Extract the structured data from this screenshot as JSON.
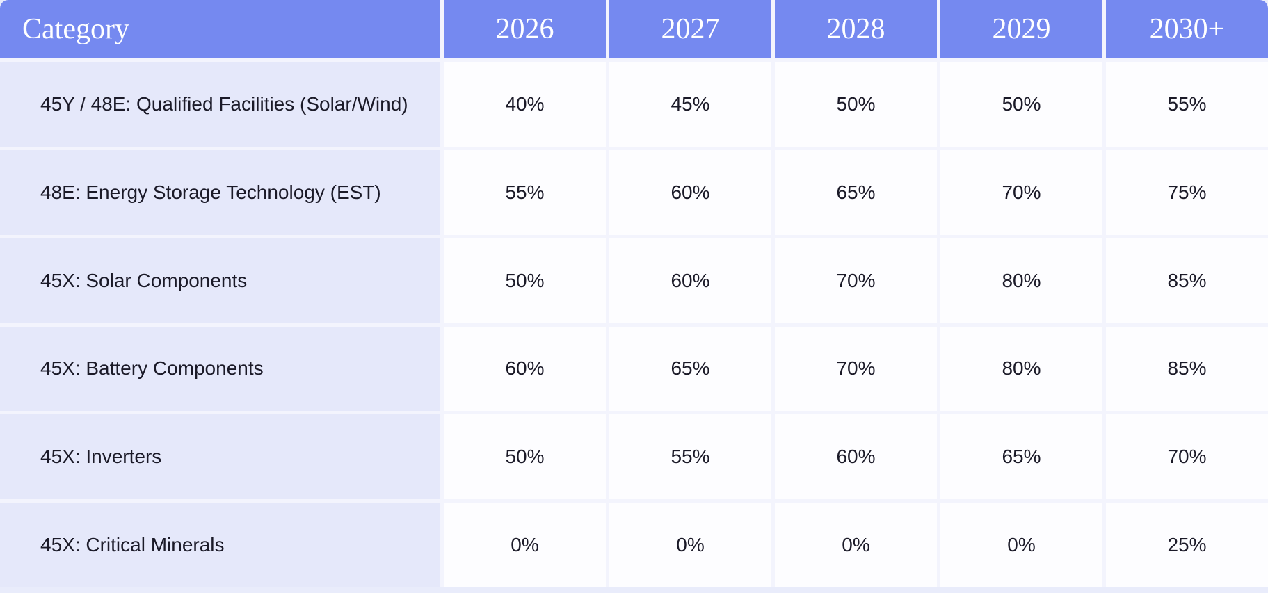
{
  "colors": {
    "header_bg": "#7589f0",
    "header_text": "#ffffff",
    "category_cell_bg": "#e5e8fa",
    "value_cell_bg": "#fdfdff",
    "gap": "#f3f4fd",
    "body_text": "#1b1a28",
    "page_bg": "#e9ecfb"
  },
  "table": {
    "columns": [
      "Category",
      "2026",
      "2027",
      "2028",
      "2029",
      "2030+"
    ],
    "rows": [
      {
        "category": "45Y / 48E: Qualified Facilities (Solar/Wind)",
        "values": [
          "40%",
          "45%",
          "50%",
          "50%",
          "55%"
        ]
      },
      {
        "category": "48E: Energy Storage Technology (EST)",
        "values": [
          "55%",
          "60%",
          "65%",
          "70%",
          "75%"
        ]
      },
      {
        "category": "45X: Solar Components",
        "values": [
          "50%",
          "60%",
          "70%",
          "80%",
          "85%"
        ]
      },
      {
        "category": "45X: Battery Components",
        "values": [
          "60%",
          "65%",
          "70%",
          "80%",
          "85%"
        ]
      },
      {
        "category": "45X: Inverters",
        "values": [
          "50%",
          "55%",
          "60%",
          "65%",
          "70%"
        ]
      },
      {
        "category": "45X: Critical Minerals",
        "values": [
          "0%",
          "0%",
          "0%",
          "0%",
          "25%"
        ]
      }
    ]
  },
  "chart_data": {
    "type": "table",
    "title": "",
    "columns": [
      "Category",
      "2026",
      "2027",
      "2028",
      "2029",
      "2030+"
    ],
    "rows": [
      {
        "label": "45Y / 48E: Qualified Facilities (Solar/Wind)",
        "values_pct": [
          40,
          45,
          50,
          50,
          55
        ]
      },
      {
        "label": "48E: Energy Storage Technology (EST)",
        "values_pct": [
          55,
          60,
          65,
          70,
          75
        ]
      },
      {
        "label": "45X: Solar Components",
        "values_pct": [
          50,
          60,
          70,
          80,
          85
        ]
      },
      {
        "label": "45X: Battery Components",
        "values_pct": [
          60,
          65,
          70,
          80,
          85
        ]
      },
      {
        "label": "45X: Inverters",
        "values_pct": [
          50,
          55,
          60,
          65,
          70
        ]
      },
      {
        "label": "45X: Critical Minerals",
        "values_pct": [
          0,
          0,
          0,
          0,
          25
        ]
      }
    ]
  }
}
